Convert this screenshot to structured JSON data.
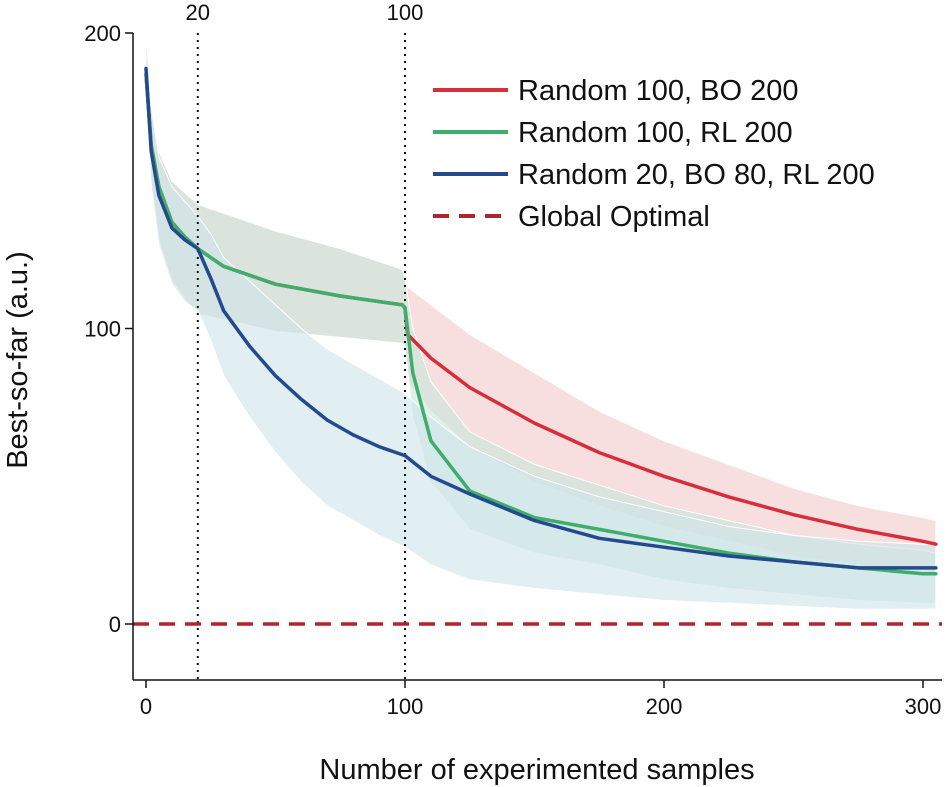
{
  "chart_data": {
    "type": "line",
    "xlabel": "Number of experimented samples",
    "ylabel": "Best-so-far (a.u.)",
    "xlim": [
      -5,
      305
    ],
    "ylim": [
      -19,
      200
    ],
    "xticks": [
      "0",
      "100",
      "200",
      "300"
    ],
    "xtick_values": [
      0,
      100,
      200,
      300
    ],
    "yticks": [
      "0",
      "100",
      "200"
    ],
    "ytick_values": [
      0,
      100,
      200
    ],
    "grid": false,
    "legend_position": "top-right",
    "reference_lines": [
      {
        "x": 20,
        "label": "20",
        "style": "dotted",
        "color": "#111111"
      },
      {
        "x": 100,
        "label": "100",
        "style": "dotted",
        "color": "#111111"
      }
    ],
    "series": [
      {
        "name": "Random 100, BO 200",
        "color": "#d62e3a",
        "band_color": "#f2c9c9",
        "x": [
          0,
          2,
          5,
          10,
          15,
          20,
          30,
          50,
          75,
          99,
          100,
          101,
          110,
          125,
          150,
          175,
          200,
          225,
          250,
          275,
          300,
          305
        ],
        "y": [
          186,
          162,
          148,
          136,
          131,
          127,
          121,
          115,
          111,
          108,
          107,
          98,
          90,
          80,
          68,
          58,
          50,
          43,
          37,
          32,
          28,
          27
        ],
        "lower": [
          180,
          150,
          130,
          116,
          110,
          105,
          103,
          99,
          97,
          95,
          94,
          82,
          72,
          60,
          48,
          40,
          33,
          28,
          23,
          20,
          18,
          17
        ],
        "upper": [
          200,
          176,
          160,
          150,
          146,
          142,
          139,
          133,
          127,
          120,
          117,
          114,
          108,
          98,
          85,
          72,
          62,
          54,
          46,
          40,
          36,
          35
        ]
      },
      {
        "name": "Random 100, RL 200",
        "color": "#3fae6c",
        "band_color": "#c8e6dc",
        "x": [
          0,
          2,
          5,
          10,
          15,
          20,
          30,
          50,
          75,
          99,
          100,
          103,
          110,
          125,
          150,
          175,
          200,
          225,
          250,
          275,
          300,
          305
        ],
        "y": [
          186,
          162,
          148,
          136,
          131,
          127,
          121,
          115,
          111,
          108,
          107,
          85,
          62,
          45,
          36,
          32,
          28,
          24,
          21,
          19,
          17,
          17
        ],
        "lower": [
          180,
          150,
          130,
          116,
          110,
          105,
          103,
          99,
          97,
          95,
          94,
          70,
          48,
          32,
          24,
          20,
          15,
          12,
          10,
          8,
          7,
          7
        ],
        "upper": [
          200,
          176,
          160,
          150,
          146,
          142,
          139,
          133,
          127,
          120,
          117,
          100,
          82,
          65,
          54,
          47,
          40,
          35,
          30,
          27,
          25,
          24
        ]
      },
      {
        "name": "Random 20, BO 80, RL 200",
        "color": "#234a8c",
        "band_color": "#cfe4ea",
        "x": [
          0,
          2,
          5,
          10,
          15,
          20,
          25,
          30,
          40,
          50,
          60,
          70,
          80,
          90,
          100,
          110,
          125,
          150,
          175,
          200,
          225,
          250,
          275,
          300,
          305
        ],
        "y": [
          188,
          160,
          145,
          134,
          130,
          127,
          117,
          106,
          94,
          84,
          76,
          69,
          64,
          60,
          57,
          50,
          44,
          35,
          29,
          26,
          23,
          21,
          19,
          19,
          19
        ],
        "lower": [
          182,
          148,
          128,
          115,
          109,
          106,
          96,
          84,
          70,
          58,
          48,
          40,
          35,
          30,
          26,
          20,
          15,
          12,
          10,
          8,
          7,
          6,
          5,
          5,
          5
        ],
        "upper": [
          200,
          175,
          158,
          148,
          143,
          138,
          132,
          124,
          116,
          108,
          100,
          93,
          88,
          83,
          78,
          70,
          60,
          50,
          43,
          38,
          33,
          30,
          28,
          27,
          27
        ]
      }
    ],
    "global_optimal": {
      "name": "Global Optimal",
      "y": 0,
      "color": "#b0242e",
      "style": "dashed"
    }
  }
}
